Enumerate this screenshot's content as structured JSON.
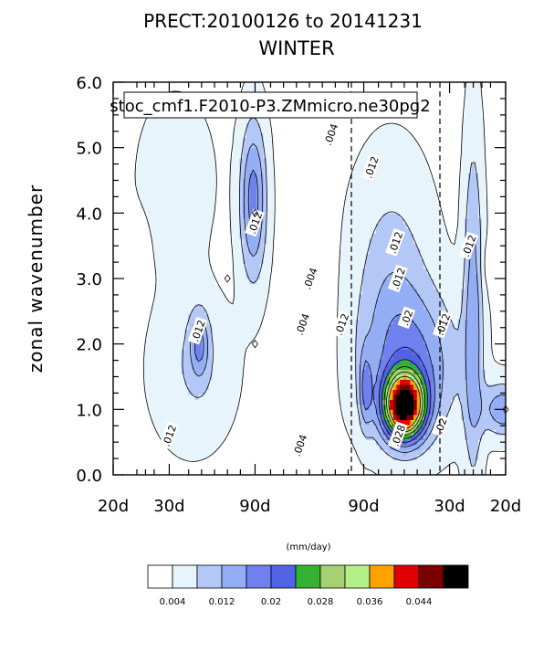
{
  "chart_data": {
    "type": "contour",
    "title": "PRECT:20100126 to 20141231",
    "subtitle": "WINTER",
    "ylabel": "zonal wavenumber",
    "annotation": "stoc_cmf1.F2010-P3.ZMmicro.ne30pg2",
    "x_ticks": [
      "20d",
      "30d",
      "90d",
      "90d",
      "30d",
      "20d"
    ],
    "y_ticks": [
      "0.0",
      "1.0",
      "2.0",
      "3.0",
      "4.0",
      "5.0",
      "6.0"
    ],
    "ylim": [
      0,
      6
    ],
    "units": "(mm/day)",
    "contour_levels": [
      0.004,
      0.008,
      0.012,
      0.016,
      0.02,
      0.024,
      0.028,
      0.032,
      0.036,
      0.04,
      0.044,
      0.048
    ],
    "colorbar_labels": [
      ".004",
      ".012",
      ".02",
      ".028",
      ".036",
      ".044"
    ],
    "colorbar_label_text": [
      "0.004",
      "0.012",
      "0.02",
      "0.028",
      "0.036",
      "0.044"
    ],
    "fill_colors": [
      "#ffffff",
      "#e8f4fc",
      "#b4c8f8",
      "#94aef6",
      "#7080ee",
      "#5262e6",
      "#33b233",
      "#a6d072",
      "#b4f088",
      "#ffa200",
      "#e00000",
      "#7a0000",
      "#000000"
    ],
    "contour_labels": [
      {
        "text": ".004",
        "x": 0.5,
        "y": 5.2
      },
      {
        "text": ".004",
        "x": 0.02,
        "y": 3.0
      },
      {
        "text": ".004",
        "x": -0.16,
        "y": 2.3
      },
      {
        "text": ".004",
        "x": -0.22,
        "y": 0.45
      },
      {
        "text": ".012",
        "x": 1.44,
        "y": 4.7
      },
      {
        "text": ".012",
        "x": 2.0,
        "y": 3.55
      },
      {
        "text": ".012",
        "x": 3.7,
        "y": 3.5
      },
      {
        "text": ".012",
        "x": 2.06,
        "y": 3.0
      },
      {
        "text": ".012",
        "x": 0.75,
        "y": 2.3
      },
      {
        "text": ".012",
        "x": -1.26,
        "y": 3.85
      },
      {
        "text": ".012",
        "x": -2.58,
        "y": 2.2
      },
      {
        "text": ".012",
        "x": 3.1,
        "y": 2.3
      },
      {
        "text": ".012",
        "x": -3.25,
        "y": 0.6
      },
      {
        "text": ".02",
        "x": 2.26,
        "y": 2.4
      },
      {
        "text": ".02",
        "x": 3.05,
        "y": 0.75
      },
      {
        "text": ".028",
        "x": 2.06,
        "y": 0.6
      }
    ],
    "local_maxima": [
      {
        "x": -1.26,
        "y": 4.0
      },
      {
        "x": -1.26,
        "y": 2.0
      },
      {
        "x": -1.9,
        "y": 3.0
      },
      {
        "x": 4.55,
        "y": 1.0
      }
    ]
  }
}
